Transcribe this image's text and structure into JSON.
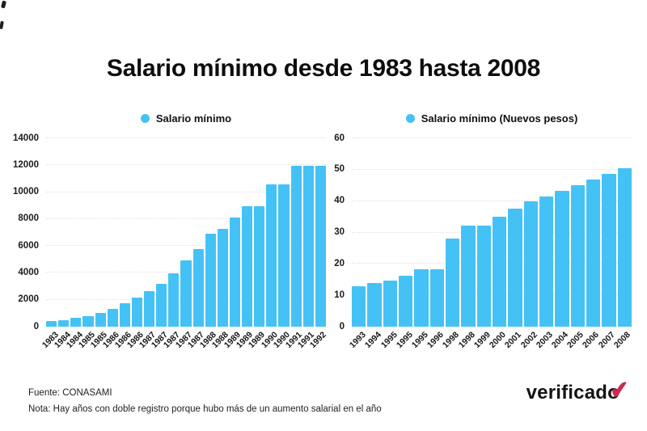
{
  "title": "Salario mínimo desde 1983 hasta 2008",
  "colors": {
    "bar": "#45C2F5",
    "check": "#CE2A52",
    "grid": "#E2E2E2",
    "text": "#111111"
  },
  "footer": {
    "fuente": "Fuente: CONASAMI",
    "nota": "Nota: Hay años con doble registro porque hubo más de un aumento salarial en el año"
  },
  "logo": {
    "text": "verificado",
    "check_icon": "✔"
  },
  "chart_data": [
    {
      "type": "bar",
      "title": "Salario mínimo",
      "legend_position": "top-center",
      "grid": true,
      "xlabel": "",
      "ylabel": "",
      "ylim": [
        0,
        14000
      ],
      "yticks": [
        0,
        2000,
        4000,
        6000,
        8000,
        10000,
        12000,
        14000
      ],
      "categories": [
        "1983",
        "1984",
        "1984",
        "1985",
        "1985",
        "1986",
        "1986",
        "1986",
        "1987",
        "1987",
        "1987",
        "1987",
        "1987",
        "1988",
        "1988",
        "1989",
        "1989",
        "1989",
        "1990",
        "1990",
        "1991",
        "1991",
        "1992"
      ],
      "values": [
        400,
        500,
        650,
        800,
        1000,
        1350,
        1750,
        2150,
        2650,
        3200,
        3950,
        4950,
        5750,
        6900,
        7300,
        8100,
        8950,
        8950,
        10600,
        10600,
        11950,
        11950,
        11950
      ]
    },
    {
      "type": "bar",
      "title": "Salario mínimo (Nuevos pesos)",
      "legend_position": "top-center",
      "grid": true,
      "xlabel": "",
      "ylabel": "",
      "ylim": [
        0,
        60
      ],
      "yticks": [
        0,
        10,
        20,
        30,
        40,
        50,
        60
      ],
      "categories": [
        "1993",
        "1994",
        "1995",
        "1995",
        "1995",
        "1996",
        "1998",
        "1998",
        "1999",
        "2000",
        "2001",
        "2002",
        "2003",
        "2004",
        "2005",
        "2006",
        "2007",
        "2008"
      ],
      "values": [
        13,
        13.8,
        14.8,
        16.3,
        18.2,
        18.4,
        28,
        32.2,
        32.2,
        35.1,
        37.6,
        39.8,
        41.5,
        43.2,
        45,
        46.9,
        48.8,
        50.6
      ]
    }
  ]
}
